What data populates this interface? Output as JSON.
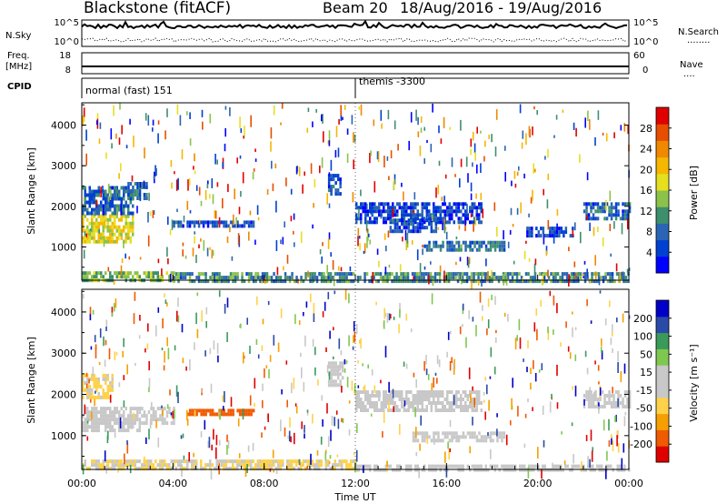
{
  "header": {
    "station": "Blackstone (fitACF)",
    "beam": "Beam 20",
    "dates": "18/Aug/2016 - 19/Aug/2016"
  },
  "panels": {
    "nsky": {
      "label": "N.Sky",
      "left_ticks": [
        "10^5",
        "10^0"
      ],
      "right_ticks": [
        "10^5",
        "10^0"
      ],
      "right_label": "N.Search",
      "right_legend": "........"
    },
    "freq": {
      "label_line1": "Freq.",
      "label_line2": "[MHz]",
      "left_ticks": [
        "18",
        "8"
      ],
      "right_ticks": [
        "60",
        "0"
      ],
      "right_label": "Nave",
      "right_legend": "...."
    },
    "cpid": {
      "label": "CPID",
      "modes": [
        {
          "name": "normal (fast) 151",
          "start_hour": 0
        },
        {
          "name": "themis -3300",
          "start_hour": 12
        }
      ]
    }
  },
  "chart_data": [
    {
      "type": "heatmap",
      "title": "",
      "ylabel": "Slant Range [km]",
      "xlabel": "",
      "ylim": [
        180,
        4550
      ],
      "y_ticks": [
        "4000",
        "3000",
        "2000",
        "1000"
      ],
      "y_tick_values": [
        4000,
        3000,
        2000,
        1000
      ],
      "colorbar": {
        "label": "Power [dB]",
        "ticks": [
          "28",
          "24",
          "20",
          "16",
          "12",
          "8",
          "4"
        ],
        "range": [
          0,
          32
        ],
        "colors": [
          "#0000ff",
          "#0040d0",
          "#2a64b4",
          "#3f8f6e",
          "#8cc24a",
          "#e6df20",
          "#f5b700",
          "#f08800",
          "#e84e00",
          "#e00000"
        ]
      },
      "regions": [
        {
          "t0": 0.0,
          "t1": 2.2,
          "r0": 1150,
          "r1": 1800,
          "level": 18
        },
        {
          "t0": 0.0,
          "t1": 2.2,
          "r0": 1800,
          "r1": 2500,
          "level": 7
        },
        {
          "t0": 2.0,
          "t1": 2.8,
          "r0": 2200,
          "r1": 2600,
          "level": 8
        },
        {
          "t0": 0.0,
          "t1": 4.0,
          "r0": 180,
          "r1": 400,
          "level": 14
        },
        {
          "t0": 4.0,
          "t1": 7.5,
          "r0": 1550,
          "r1": 1650,
          "level": 6
        },
        {
          "t0": 10.8,
          "t1": 11.3,
          "r0": 2300,
          "r1": 2800,
          "level": 6
        },
        {
          "t0": 12.0,
          "t1": 17.5,
          "r0": 1650,
          "r1": 2100,
          "level": 5
        },
        {
          "t0": 13.5,
          "t1": 15.5,
          "r0": 1400,
          "r1": 1700,
          "level": 6
        },
        {
          "t0": 15.0,
          "t1": 18.5,
          "r0": 900,
          "r1": 1150,
          "level": 9
        },
        {
          "t0": 19.5,
          "t1": 21.5,
          "r0": 1300,
          "r1": 1500,
          "level": 5
        },
        {
          "t0": 22.0,
          "t1": 24.0,
          "r0": 1700,
          "r1": 2100,
          "level": 7
        },
        {
          "t0": 4.0,
          "t1": 24.0,
          "r0": 180,
          "r1": 380,
          "level": 10
        }
      ]
    },
    {
      "type": "heatmap",
      "title": "",
      "ylabel": "Slant Range [km]",
      "xlabel": "Time UT",
      "ylim": [
        180,
        4550
      ],
      "y_ticks": [
        "4000",
        "3000",
        "2000",
        "1000"
      ],
      "y_tick_values": [
        4000,
        3000,
        2000,
        1000
      ],
      "x_ticks": [
        "00:00",
        "04:00",
        "08:00",
        "12:00",
        "16:00",
        "20:00",
        "00:00"
      ],
      "x_tick_hours": [
        0,
        4,
        8,
        12,
        16,
        20,
        24
      ],
      "colorbar": {
        "label": "Velocity [m s⁻¹]",
        "ticks": [
          "200",
          "100",
          "50",
          "15",
          "-15",
          "-50",
          "-100",
          "-200"
        ],
        "range": [
          -250,
          250
        ],
        "colors": [
          "#e00000",
          "#f05a00",
          "#f5a000",
          "#ffd24a",
          "#c8c8c8",
          "#c8c8c8",
          "#7ec850",
          "#3a9a5a",
          "#2a4aa8",
          "#0000c8"
        ]
      },
      "regions": [
        {
          "t0": 0.0,
          "t1": 2.5,
          "r0": 1100,
          "r1": 1700,
          "level": 0
        },
        {
          "t0": 2.5,
          "t1": 4.0,
          "r0": 1300,
          "r1": 1700,
          "level": 0
        },
        {
          "t0": 0.0,
          "t1": 1.3,
          "r0": 1900,
          "r1": 2500,
          "level": -60
        },
        {
          "t0": 4.5,
          "t1": 7.5,
          "r0": 1550,
          "r1": 1650,
          "level": -180
        },
        {
          "t0": 0.0,
          "t1": 12.0,
          "r0": 180,
          "r1": 420,
          "level": -50
        },
        {
          "t0": 10.8,
          "t1": 11.4,
          "r0": 2200,
          "r1": 2800,
          "level": 0
        },
        {
          "t0": 12.0,
          "t1": 17.5,
          "r0": 1600,
          "r1": 2100,
          "level": 0
        },
        {
          "t0": 14.5,
          "t1": 18.5,
          "r0": 900,
          "r1": 1100,
          "level": 0
        },
        {
          "t0": 22.0,
          "t1": 24.0,
          "r0": 1700,
          "r1": 2100,
          "level": 0
        },
        {
          "t0": 12.0,
          "t1": 24.0,
          "r0": 180,
          "r1": 300,
          "level": 20
        }
      ]
    }
  ]
}
